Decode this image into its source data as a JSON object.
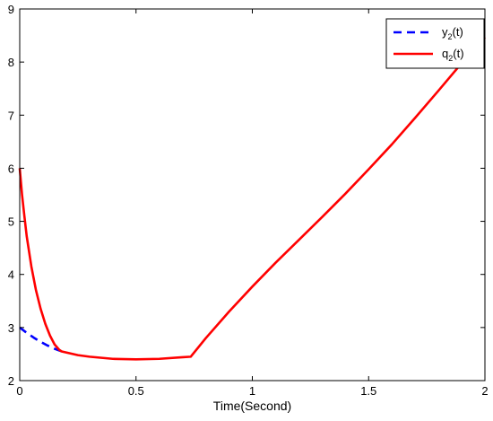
{
  "chart_data": {
    "type": "line",
    "xlabel": "Time(Second)",
    "ylabel": "",
    "xlim": [
      0,
      2
    ],
    "ylim": [
      2,
      9
    ],
    "x_ticks": [
      0,
      0.5,
      1,
      1.5,
      2
    ],
    "x_tick_labels": [
      "0",
      "0.5",
      "1",
      "1.5",
      "2"
    ],
    "y_ticks": [
      2,
      3,
      4,
      5,
      6,
      7,
      8,
      9
    ],
    "y_tick_labels": [
      "2",
      "3",
      "4",
      "5",
      "6",
      "7",
      "8",
      "9"
    ],
    "grid": false,
    "legend_position": "top-right",
    "series": [
      {
        "name_main": "y",
        "name_sub": "2",
        "name_tail": "(t)",
        "color": "#0000ff",
        "style": "dashed",
        "points": [
          [
            0,
            3.0
          ],
          [
            0.03,
            2.9
          ],
          [
            0.06,
            2.81
          ],
          [
            0.09,
            2.73
          ],
          [
            0.12,
            2.66
          ],
          [
            0.15,
            2.6
          ],
          [
            0.18,
            2.55
          ]
        ]
      },
      {
        "name_main": "q",
        "name_sub": "2",
        "name_tail": "(t)",
        "color": "#ff0000",
        "style": "solid",
        "points": [
          [
            0,
            6.0
          ],
          [
            0.01,
            5.5
          ],
          [
            0.02,
            5.1
          ],
          [
            0.03,
            4.72
          ],
          [
            0.05,
            4.15
          ],
          [
            0.07,
            3.7
          ],
          [
            0.09,
            3.35
          ],
          [
            0.11,
            3.07
          ],
          [
            0.13,
            2.85
          ],
          [
            0.15,
            2.68
          ],
          [
            0.17,
            2.58
          ],
          [
            0.18,
            2.55
          ],
          [
            0.25,
            2.48
          ],
          [
            0.3,
            2.45
          ],
          [
            0.4,
            2.41
          ],
          [
            0.5,
            2.4
          ],
          [
            0.6,
            2.41
          ],
          [
            0.7,
            2.44
          ],
          [
            0.735,
            2.45
          ],
          [
            0.8,
            2.8
          ],
          [
            0.9,
            3.3
          ],
          [
            1.0,
            3.77
          ],
          [
            1.1,
            4.22
          ],
          [
            1.2,
            4.65
          ],
          [
            1.3,
            5.08
          ],
          [
            1.4,
            5.52
          ],
          [
            1.5,
            5.98
          ],
          [
            1.6,
            6.45
          ],
          [
            1.7,
            6.95
          ],
          [
            1.8,
            7.46
          ],
          [
            1.9,
            7.98
          ],
          [
            2.0,
            8.47
          ]
        ]
      }
    ]
  }
}
